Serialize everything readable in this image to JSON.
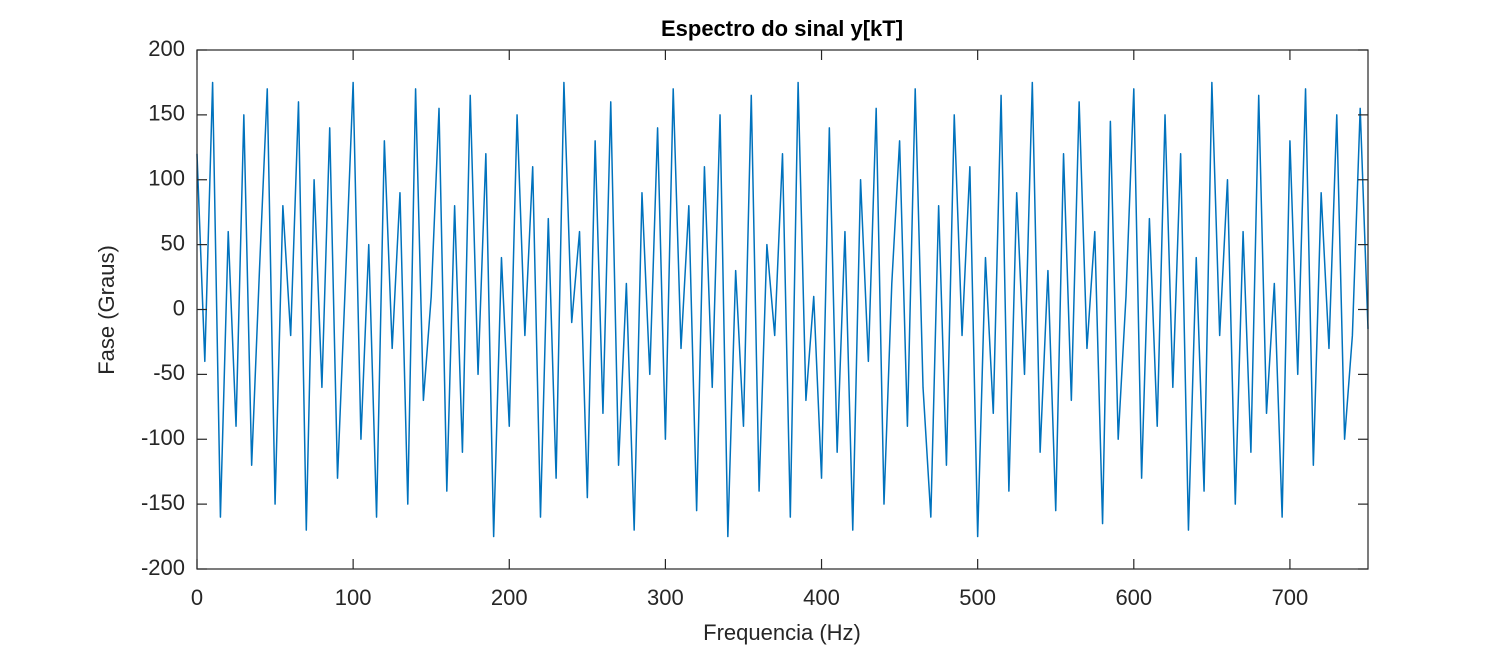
{
  "chart_data": {
    "type": "line",
    "title": "Espectro do sinal y[kT]",
    "xlabel": "Frequencia (Hz)",
    "ylabel": "Fase (Graus)",
    "color": "#0072bd",
    "grid": false,
    "xlim": [
      0,
      750
    ],
    "xticks": [
      0,
      100,
      200,
      300,
      400,
      500,
      600,
      700
    ],
    "ylim": [
      -200,
      200
    ],
    "yticks": [
      -200,
      -150,
      -100,
      -50,
      0,
      50,
      100,
      150,
      200
    ],
    "x": [
      0,
      5,
      10,
      15,
      20,
      25,
      30,
      35,
      40,
      45,
      50,
      55,
      60,
      65,
      70,
      75,
      80,
      85,
      90,
      95,
      100,
      105,
      110,
      115,
      120,
      125,
      130,
      135,
      140,
      145,
      150,
      155,
      160,
      165,
      170,
      175,
      180,
      185,
      190,
      195,
      200,
      205,
      210,
      215,
      220,
      225,
      230,
      235,
      240,
      245,
      250,
      255,
      260,
      265,
      270,
      275,
      280,
      285,
      290,
      295,
      300,
      305,
      310,
      315,
      320,
      325,
      330,
      335,
      340,
      345,
      350,
      355,
      360,
      365,
      370,
      375,
      380,
      385,
      390,
      395,
      400,
      405,
      410,
      415,
      420,
      425,
      430,
      435,
      440,
      445,
      450,
      455,
      460,
      465,
      470,
      475,
      480,
      485,
      490,
      495,
      500,
      505,
      510,
      515,
      520,
      525,
      530,
      535,
      540,
      545,
      550,
      555,
      560,
      565,
      570,
      575,
      580,
      585,
      590,
      595,
      600,
      605,
      610,
      615,
      620,
      625,
      630,
      635,
      640,
      645,
      650,
      655,
      660,
      665,
      670,
      675,
      680,
      685,
      690,
      695,
      700,
      705,
      710,
      715,
      720,
      725,
      730,
      735,
      740,
      745,
      750
    ],
    "values": [
      120,
      -40,
      175,
      -160,
      60,
      -90,
      150,
      -120,
      30,
      170,
      -150,
      80,
      -20,
      160,
      -170,
      100,
      -60,
      140,
      -130,
      20,
      175,
      -100,
      50,
      -160,
      130,
      -30,
      90,
      -150,
      170,
      -70,
      10,
      155,
      -140,
      80,
      -110,
      165,
      -50,
      120,
      -175,
      40,
      -90,
      150,
      -20,
      110,
      -160,
      70,
      -130,
      175,
      -10,
      60,
      -145,
      130,
      -80,
      160,
      -120,
      20,
      -170,
      90,
      -50,
      140,
      -100,
      170,
      -30,
      80,
      -155,
      110,
      -60,
      150,
      -175,
      30,
      -90,
      165,
      -140,
      50,
      -20,
      120,
      -160,
      175,
      -70,
      10,
      -130,
      140,
      -110,
      60,
      -170,
      100,
      -40,
      155,
      -150,
      20,
      130,
      -90,
      170,
      -60,
      -160,
      80,
      -120,
      150,
      -20,
      110,
      -175,
      40,
      -80,
      165,
      -140,
      90,
      -50,
      175,
      -110,
      30,
      -155,
      120,
      -70,
      160,
      -30,
      60,
      -165,
      145,
      -100,
      10,
      170,
      -130,
      70,
      -90,
      150,
      -60,
      120,
      -170,
      40,
      -140,
      175,
      -20,
      100,
      -150,
      60,
      -110,
      165,
      -80,
      20,
      -160,
      130,
      -50,
      170,
      -120,
      90,
      -30,
      150,
      -100,
      -20,
      155,
      -15
    ]
  }
}
